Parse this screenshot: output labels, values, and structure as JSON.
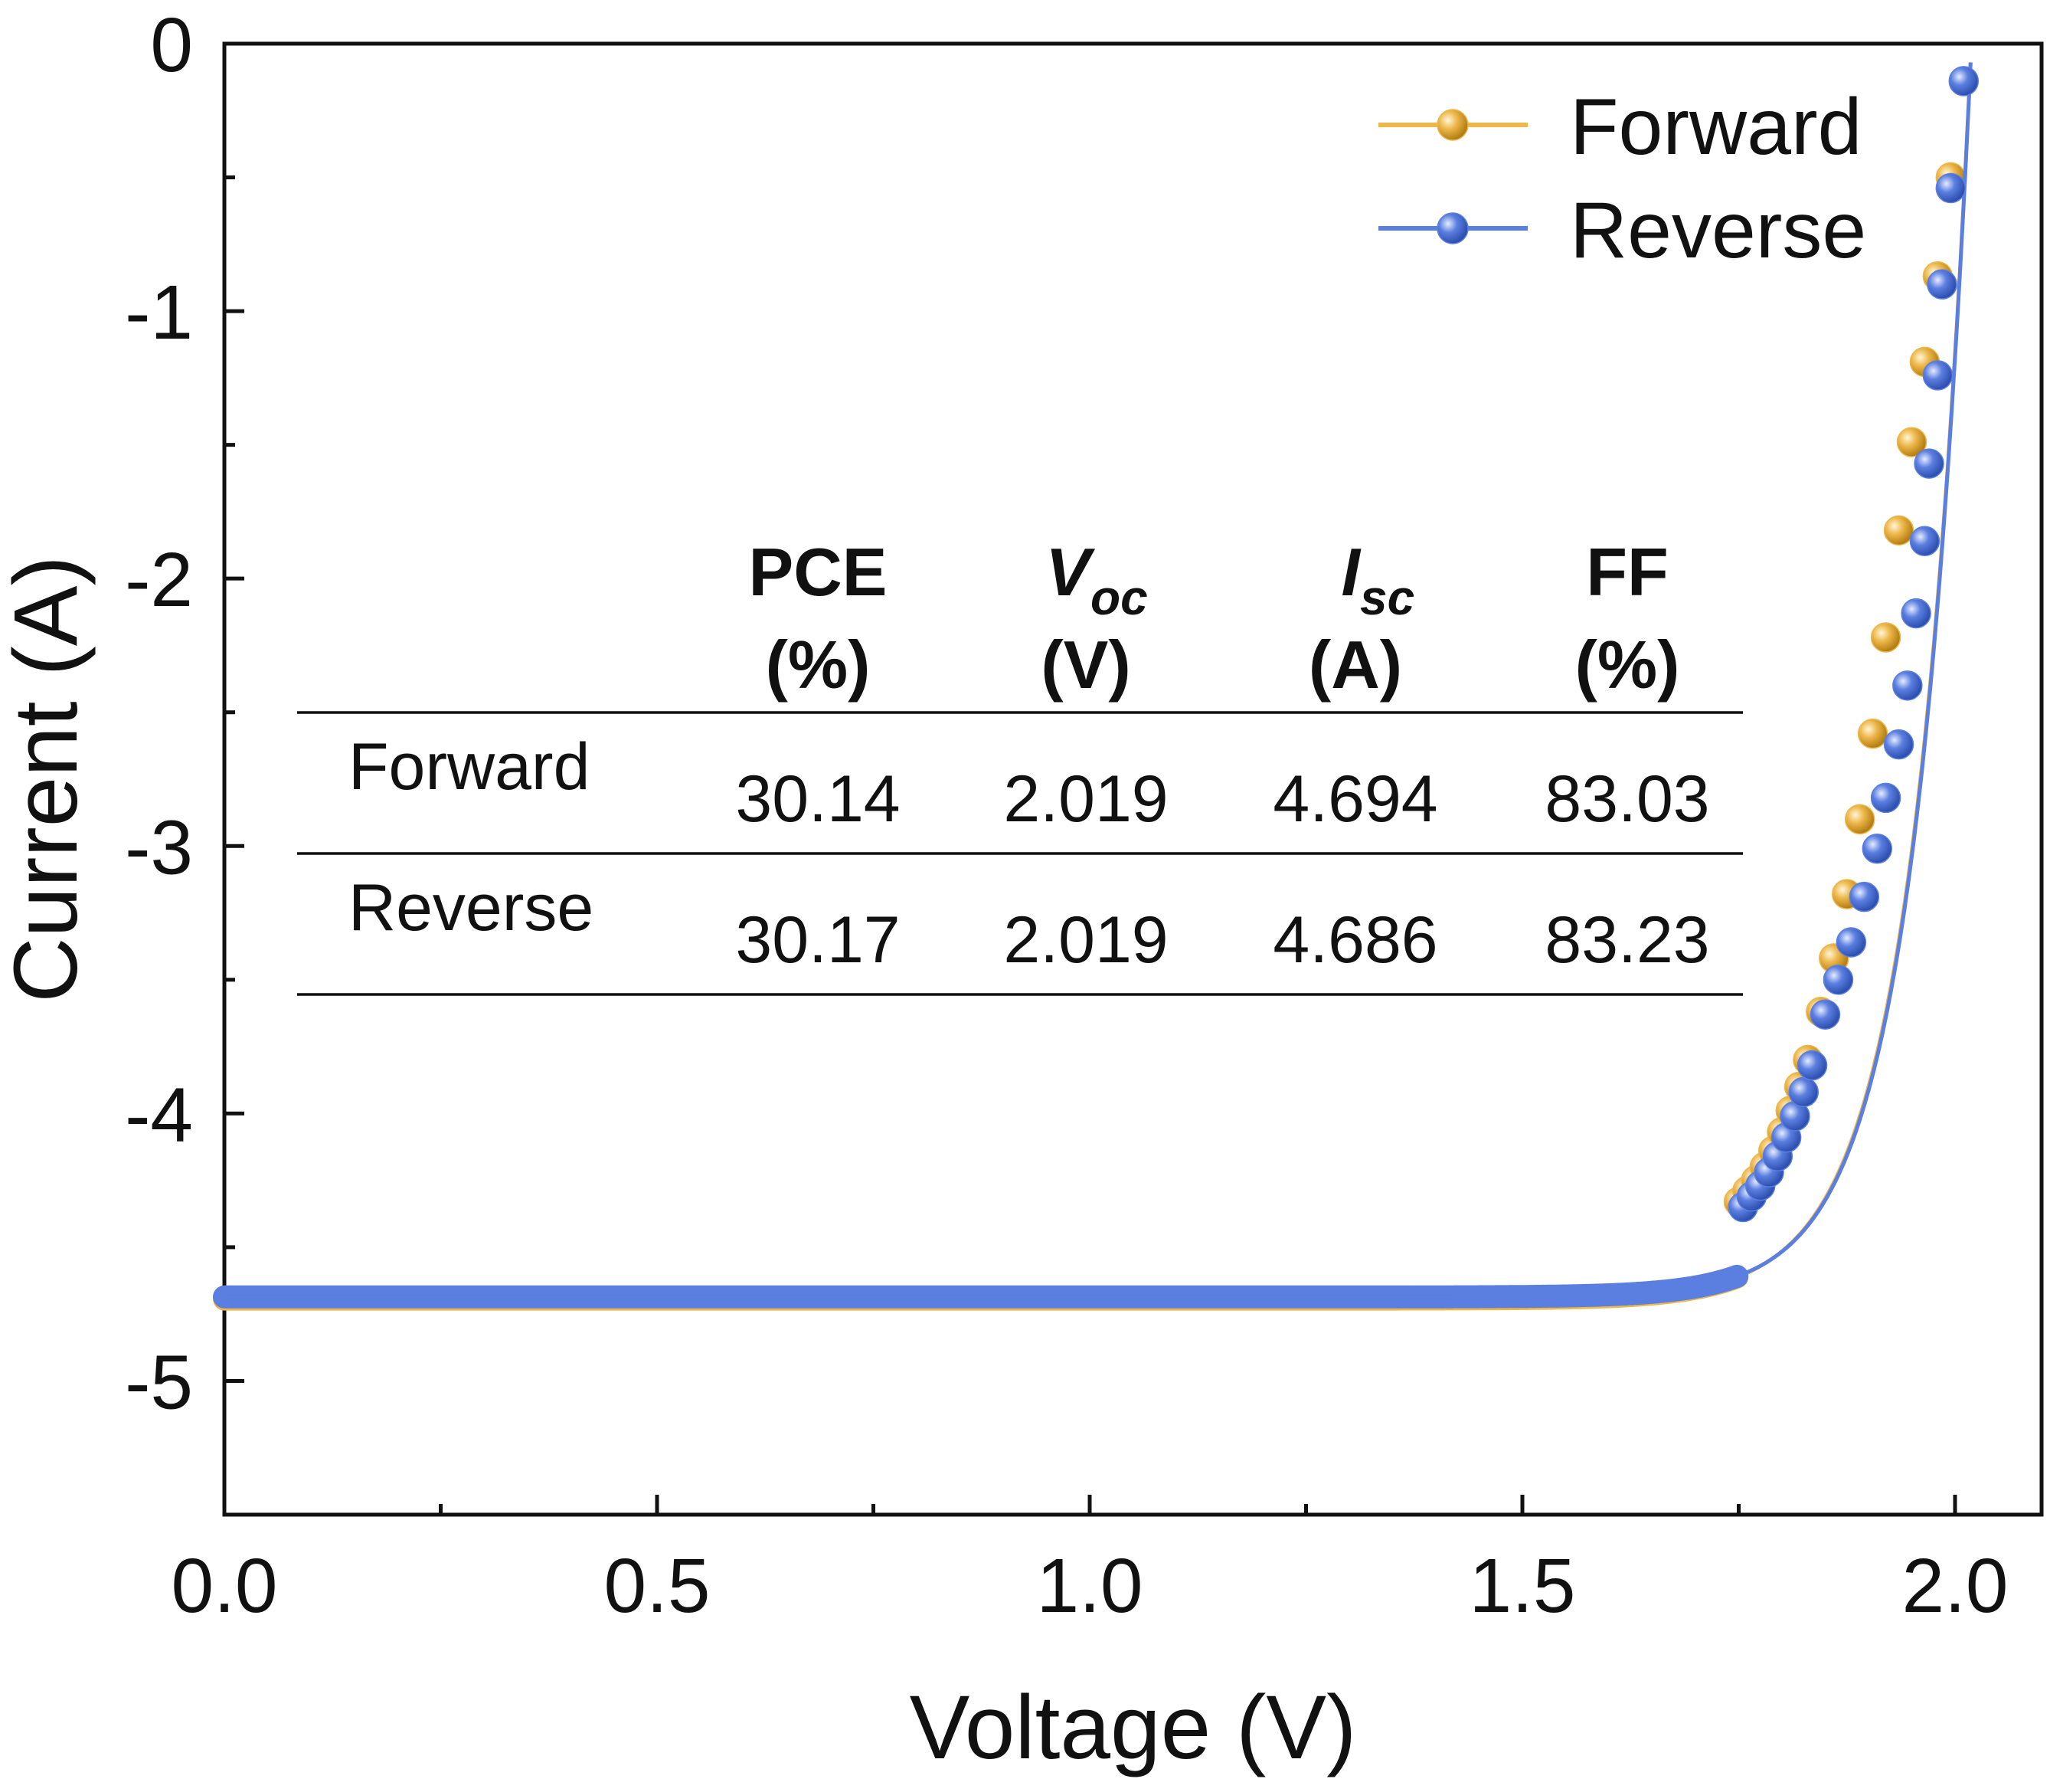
{
  "chart_data": {
    "type": "line",
    "title": "",
    "xlabel": "Voltage (V)",
    "ylabel": "Current (A)",
    "xlim": [
      0.0,
      2.1
    ],
    "ylim": [
      -5.5,
      0
    ],
    "x_ticks": [
      {
        "value": 0.0,
        "label": "0.0"
      },
      {
        "value": 0.5,
        "label": "0.5"
      },
      {
        "value": 1.0,
        "label": "1.0"
      },
      {
        "value": 1.5,
        "label": "1.5"
      },
      {
        "value": 2.0,
        "label": "2.0"
      }
    ],
    "x_minor_ticks": [
      0.25,
      0.75,
      1.25,
      1.75
    ],
    "y_ticks": [
      {
        "value": 0,
        "label": "0"
      },
      {
        "value": -1,
        "label": "-1"
      },
      {
        "value": -2,
        "label": "-2"
      },
      {
        "value": -3,
        "label": "-3"
      },
      {
        "value": -4,
        "label": "-4"
      },
      {
        "value": -5,
        "label": "-5"
      }
    ],
    "y_minor_ticks": [
      -0.5,
      -1.5,
      -2.5,
      -3.5,
      -4.5,
      -5.5
    ],
    "grid": false,
    "legend_position": "top-right",
    "series": [
      {
        "name": "Forward",
        "color": "#EDB74A",
        "model": {
          "isc": 4.694,
          "voc": 2.019,
          "n_vt": 0.067
        },
        "markers": [
          {
            "x": 1.75,
            "y": -4.33
          },
          {
            "x": 1.76,
            "y": -4.29
          },
          {
            "x": 1.77,
            "y": -4.25
          },
          {
            "x": 1.78,
            "y": -4.2
          },
          {
            "x": 1.79,
            "y": -4.14
          },
          {
            "x": 1.8,
            "y": -4.07
          },
          {
            "x": 1.81,
            "y": -3.99
          },
          {
            "x": 1.82,
            "y": -3.9
          },
          {
            "x": 1.83,
            "y": -3.8
          },
          {
            "x": 1.845,
            "y": -3.62
          },
          {
            "x": 1.86,
            "y": -3.42
          },
          {
            "x": 1.875,
            "y": -3.18
          },
          {
            "x": 1.89,
            "y": -2.9
          },
          {
            "x": 1.905,
            "y": -2.58
          },
          {
            "x": 1.92,
            "y": -2.22
          },
          {
            "x": 1.935,
            "y": -1.82
          },
          {
            "x": 1.95,
            "y": -1.49
          },
          {
            "x": 1.965,
            "y": -1.19
          },
          {
            "x": 1.98,
            "y": -0.87
          },
          {
            "x": 1.995,
            "y": -0.5
          }
        ]
      },
      {
        "name": "Reverse",
        "color": "#5B7FE0",
        "model": {
          "isc": 4.686,
          "voc": 2.019,
          "n_vt": 0.066
        },
        "markers": [
          {
            "x": 1.755,
            "y": -4.35
          },
          {
            "x": 1.765,
            "y": -4.31
          },
          {
            "x": 1.775,
            "y": -4.27
          },
          {
            "x": 1.785,
            "y": -4.22
          },
          {
            "x": 1.795,
            "y": -4.16
          },
          {
            "x": 1.805,
            "y": -4.09
          },
          {
            "x": 1.815,
            "y": -4.01
          },
          {
            "x": 1.825,
            "y": -3.92
          },
          {
            "x": 1.835,
            "y": -3.82
          },
          {
            "x": 1.85,
            "y": -3.63
          },
          {
            "x": 1.865,
            "y": -3.5
          },
          {
            "x": 1.88,
            "y": -3.36
          },
          {
            "x": 1.895,
            "y": -3.19
          },
          {
            "x": 1.91,
            "y": -3.01
          },
          {
            "x": 1.92,
            "y": -2.82
          },
          {
            "x": 1.935,
            "y": -2.62
          },
          {
            "x": 1.945,
            "y": -2.4
          },
          {
            "x": 1.955,
            "y": -2.13
          },
          {
            "x": 1.965,
            "y": -1.86
          },
          {
            "x": 1.97,
            "y": -1.57
          },
          {
            "x": 1.98,
            "y": -1.24
          },
          {
            "x": 1.985,
            "y": -0.9
          },
          {
            "x": 1.995,
            "y": -0.54
          },
          {
            "x": 2.01,
            "y": -0.14
          }
        ]
      }
    ],
    "inset_table": {
      "headers": [
        {
          "main": "",
          "sub": "",
          "unit": ""
        },
        {
          "main": "PCE",
          "sub": "",
          "unit": "(%)",
          "italic": false
        },
        {
          "main": "V",
          "sub": "oc",
          "unit": "(V)",
          "italic": true
        },
        {
          "main": "I",
          "sub": "sc",
          "unit": "(A)",
          "italic": true
        },
        {
          "main": "FF",
          "sub": "",
          "unit": "(%)",
          "italic": false
        }
      ],
      "rows": [
        {
          "label": "Forward",
          "values": [
            "30.14",
            "2.019",
            "4.694",
            "83.03"
          ]
        },
        {
          "label": "Reverse",
          "values": [
            "30.17",
            "2.019",
            "4.686",
            "83.23"
          ]
        }
      ]
    }
  }
}
